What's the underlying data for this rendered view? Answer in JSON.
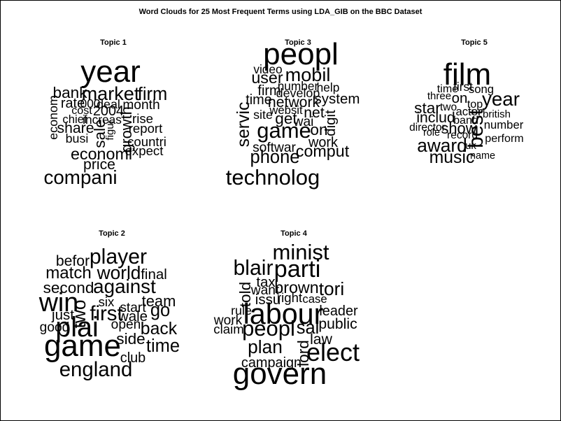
{
  "chart_data": {
    "type": "wordcloud",
    "title": "Word Clouds for 25 Most Frequent Terms using LDA_GIB on the BBC Dataset",
    "panels": [
      {
        "title": "Topic  1",
        "words": [
          {
            "text": "year",
            "weight": 1.0
          },
          {
            "text": "compani",
            "weight": 0.62
          },
          {
            "text": "market",
            "weight": 0.6
          },
          {
            "text": "firm",
            "weight": 0.56
          },
          {
            "text": "economi",
            "weight": 0.5
          },
          {
            "text": "bank",
            "weight": 0.48
          },
          {
            "text": "sale",
            "weight": 0.48
          },
          {
            "text": "growth",
            "weight": 0.46
          },
          {
            "text": "share",
            "weight": 0.44
          },
          {
            "text": "price",
            "weight": 0.44
          },
          {
            "text": "rate",
            "weight": 0.4
          },
          {
            "text": "2004",
            "weight": 0.4
          },
          {
            "text": "month",
            "weight": 0.38
          },
          {
            "text": "rise",
            "weight": 0.36
          },
          {
            "text": "report",
            "weight": 0.36
          },
          {
            "text": "countri",
            "weight": 0.36
          },
          {
            "text": "expect",
            "weight": 0.36
          },
          {
            "text": "busi",
            "weight": 0.34
          },
          {
            "text": "econom",
            "weight": 0.34
          },
          {
            "text": "deal",
            "weight": 0.34
          },
          {
            "text": "000",
            "weight": 0.32
          },
          {
            "text": "increas",
            "weight": 0.32
          },
          {
            "text": "chief",
            "weight": 0.3
          },
          {
            "text": "cost",
            "weight": 0.28
          },
          {
            "text": "figur",
            "weight": 0.24
          }
        ]
      },
      {
        "title": "Topic  3",
        "words": [
          {
            "text": "peopl",
            "weight": 1.0
          },
          {
            "text": "technolog",
            "weight": 0.7
          },
          {
            "text": "game",
            "weight": 0.7
          },
          {
            "text": "mobil",
            "weight": 0.6
          },
          {
            "text": "phone",
            "weight": 0.56
          },
          {
            "text": "servic",
            "weight": 0.54
          },
          {
            "text": "user",
            "weight": 0.5
          },
          {
            "text": "comput",
            "weight": 0.5
          },
          {
            "text": "get",
            "weight": 0.48
          },
          {
            "text": "on",
            "weight": 0.48
          },
          {
            "text": "network",
            "weight": 0.44
          },
          {
            "text": "net",
            "weight": 0.44
          },
          {
            "text": "system",
            "weight": 0.42
          },
          {
            "text": "digit",
            "weight": 0.42
          },
          {
            "text": "firm",
            "weight": 0.4
          },
          {
            "text": "time",
            "weight": 0.4
          },
          {
            "text": "work",
            "weight": 0.4
          },
          {
            "text": "softwar",
            "weight": 0.38
          },
          {
            "text": "wai",
            "weight": 0.38
          },
          {
            "text": "site",
            "weight": 0.34
          },
          {
            "text": "develop",
            "weight": 0.34
          },
          {
            "text": "number",
            "weight": 0.32
          },
          {
            "text": "video",
            "weight": 0.32
          },
          {
            "text": "help",
            "weight": 0.32
          },
          {
            "text": "websit",
            "weight": 0.3
          }
        ]
      },
      {
        "title": "Topic  5",
        "words": [
          {
            "text": "film",
            "weight": 1.0
          },
          {
            "text": "best",
            "weight": 0.66
          },
          {
            "text": "year",
            "weight": 0.62
          },
          {
            "text": "award",
            "weight": 0.58
          },
          {
            "text": "music",
            "weight": 0.54
          },
          {
            "text": "star",
            "weight": 0.48
          },
          {
            "text": "show",
            "weight": 0.46
          },
          {
            "text": "includ",
            "weight": 0.44
          },
          {
            "text": "on",
            "weight": 0.42
          },
          {
            "text": "first",
            "weight": 0.32
          },
          {
            "text": "song",
            "weight": 0.3
          },
          {
            "text": "number",
            "weight": 0.3
          },
          {
            "text": "actor",
            "weight": 0.3
          },
          {
            "text": "perform",
            "weight": 0.28
          },
          {
            "text": "band",
            "weight": 0.28
          },
          {
            "text": "time",
            "weight": 0.28
          },
          {
            "text": "top",
            "weight": 0.28
          },
          {
            "text": "director",
            "weight": 0.26
          },
          {
            "text": "two",
            "weight": 0.26
          },
          {
            "text": "record",
            "weight": 0.26
          },
          {
            "text": "british",
            "weight": 0.24
          },
          {
            "text": "three",
            "weight": 0.24
          },
          {
            "text": "uk",
            "weight": 0.24
          },
          {
            "text": "role",
            "weight": 0.22
          },
          {
            "text": "name",
            "weight": 0.22
          }
        ]
      },
      {
        "title": "Topic  2",
        "words": [
          {
            "text": "game",
            "weight": 1.0
          },
          {
            "text": "plai",
            "weight": 0.9
          },
          {
            "text": "win",
            "weight": 0.86
          },
          {
            "text": "player",
            "weight": 0.68
          },
          {
            "text": "first",
            "weight": 0.66
          },
          {
            "text": "england",
            "weight": 0.66
          },
          {
            "text": "against",
            "weight": 0.62
          },
          {
            "text": "world",
            "weight": 0.58
          },
          {
            "text": "two",
            "weight": 0.58
          },
          {
            "text": "go",
            "weight": 0.56
          },
          {
            "text": "time",
            "weight": 0.56
          },
          {
            "text": "back",
            "weight": 0.54
          },
          {
            "text": "match",
            "weight": 0.52
          },
          {
            "text": "second",
            "weight": 0.48
          },
          {
            "text": "side",
            "weight": 0.48
          },
          {
            "text": "team",
            "weight": 0.46
          },
          {
            "text": "befor",
            "weight": 0.44
          },
          {
            "text": "final",
            "weight": 0.42
          },
          {
            "text": "just",
            "weight": 0.42
          },
          {
            "text": "wale",
            "weight": 0.42
          },
          {
            "text": "club",
            "weight": 0.4
          },
          {
            "text": "start",
            "weight": 0.38
          },
          {
            "text": "good",
            "weight": 0.38
          },
          {
            "text": "open",
            "weight": 0.38
          },
          {
            "text": "six",
            "weight": 0.36
          }
        ]
      },
      {
        "title": "Topic  4",
        "words": [
          {
            "text": "govern",
            "weight": 1.0
          },
          {
            "text": "labour",
            "weight": 0.94
          },
          {
            "text": "elect",
            "weight": 0.82
          },
          {
            "text": "parti",
            "weight": 0.78
          },
          {
            "text": "peopl",
            "weight": 0.7
          },
          {
            "text": "minist",
            "weight": 0.7
          },
          {
            "text": "blair",
            "weight": 0.68
          },
          {
            "text": "plan",
            "weight": 0.58
          },
          {
            "text": "tori",
            "weight": 0.58
          },
          {
            "text": "sai",
            "weight": 0.56
          },
          {
            "text": "brown",
            "weight": 0.5
          },
          {
            "text": "told",
            "weight": 0.48
          },
          {
            "text": "lord",
            "weight": 0.48
          },
          {
            "text": "public",
            "weight": 0.44
          },
          {
            "text": "law",
            "weight": 0.44
          },
          {
            "text": "tax",
            "weight": 0.42
          },
          {
            "text": "issu",
            "weight": 0.42
          },
          {
            "text": "campaign",
            "weight": 0.4
          },
          {
            "text": "leader",
            "weight": 0.4
          },
          {
            "text": "want",
            "weight": 0.38
          },
          {
            "text": "work",
            "weight": 0.38
          },
          {
            "text": "right",
            "weight": 0.36
          },
          {
            "text": "claim",
            "weight": 0.36
          },
          {
            "text": "rule",
            "weight": 0.34
          },
          {
            "text": "case",
            "weight": 0.3
          }
        ]
      }
    ]
  }
}
